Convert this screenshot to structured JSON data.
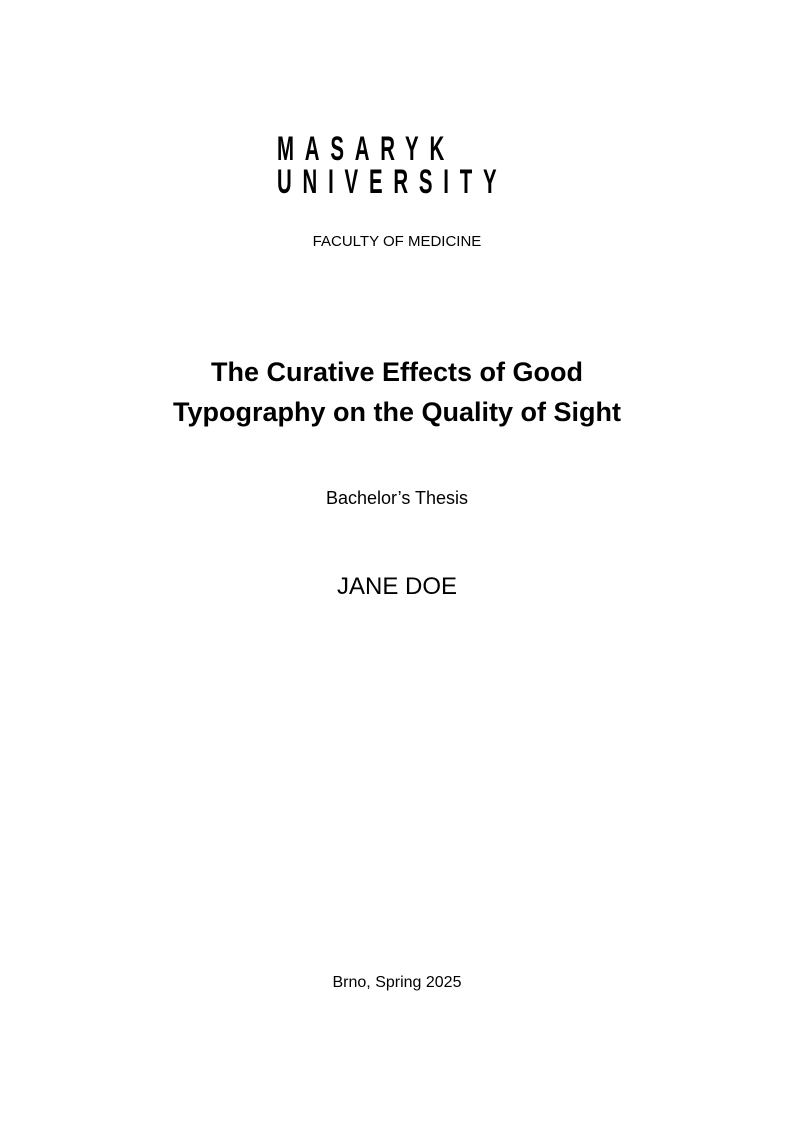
{
  "logo": {
    "line1": "MASARYK",
    "line2": "UNIVERSITY"
  },
  "faculty": "FACULTY OF MEDICINE",
  "title": {
    "line1": "The Curative Effects of Good",
    "line2": "Typography on the Quality of Sight"
  },
  "thesis_type": "Bachelor’s Thesis",
  "author": "JANE DOE",
  "place_date": "Brno, Spring 2025"
}
